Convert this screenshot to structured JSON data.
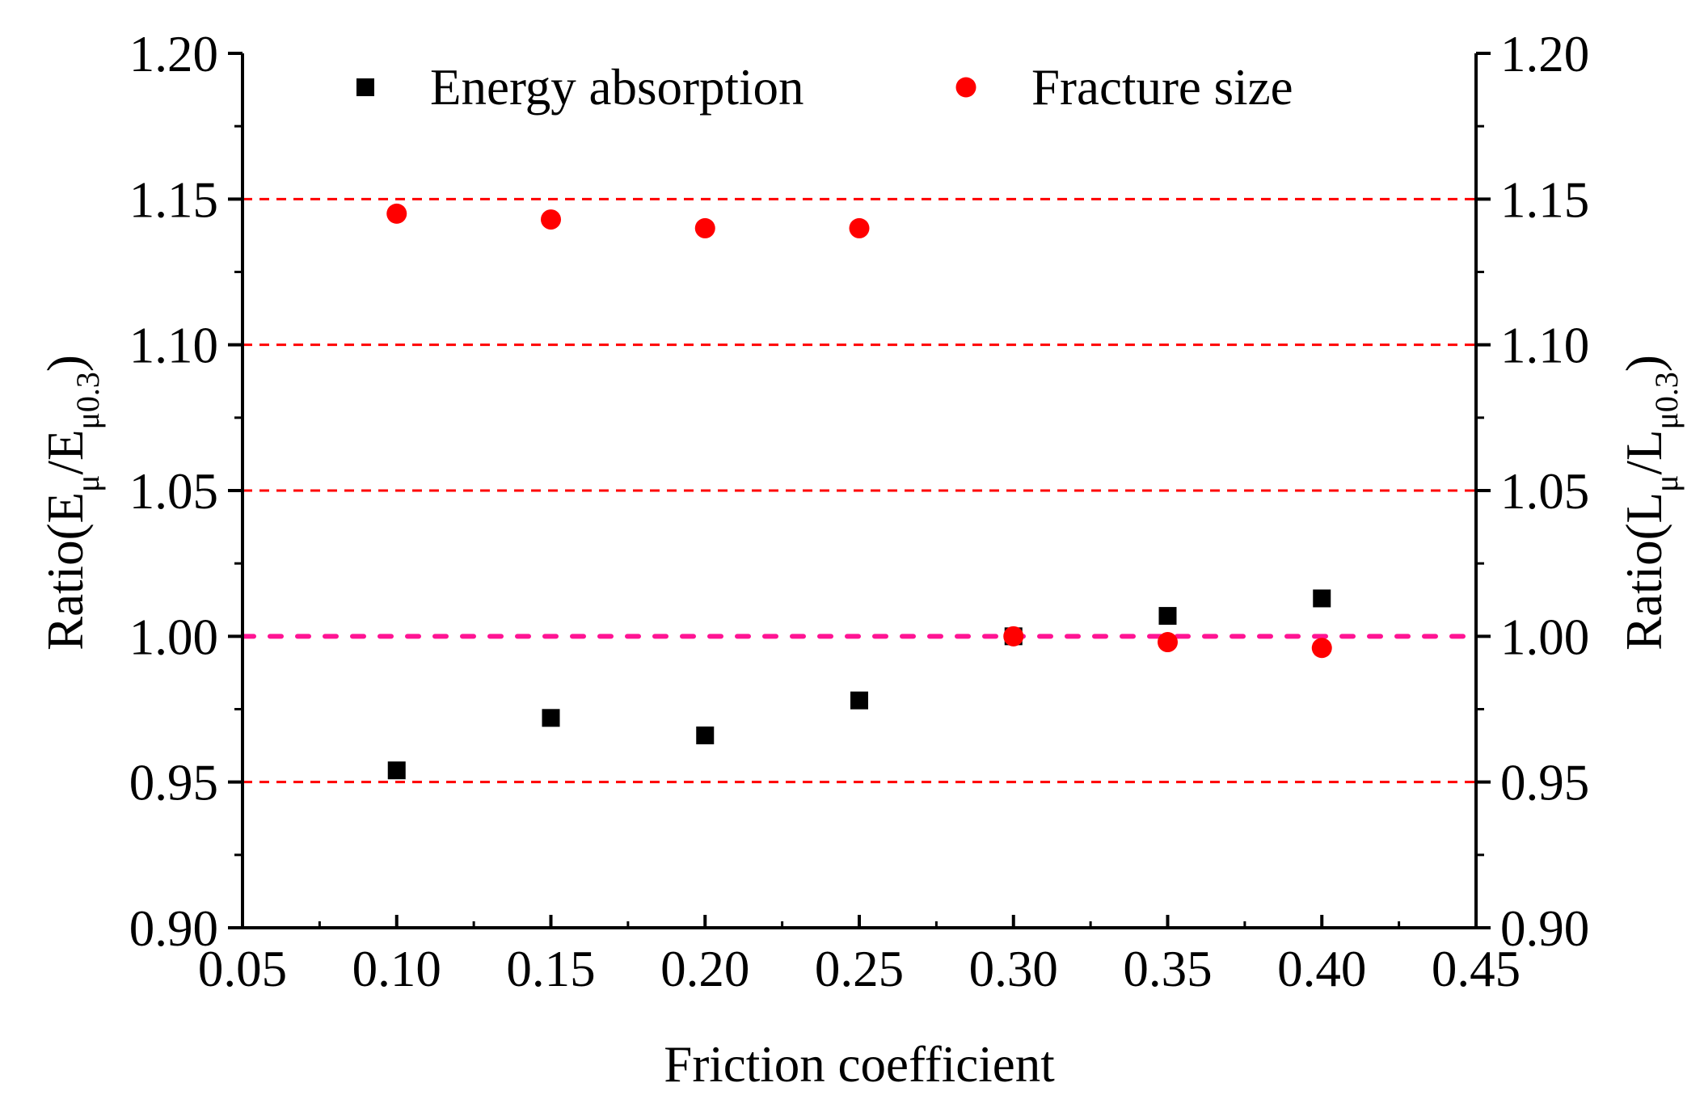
{
  "chart_data": {
    "type": "scatter",
    "xlabel": "Friction coefficient",
    "ylabel_left": {
      "prefix": "Ratio(E",
      "sub1": "μ",
      "mid": "/E",
      "sub2": "μ0.3",
      "suffix": ")"
    },
    "ylabel_right": {
      "prefix": "Ratio(L",
      "sub1": "μ",
      "mid": "/L",
      "sub2": "μ0.3",
      "suffix": ")"
    },
    "xlim": [
      0.05,
      0.45
    ],
    "ylim": [
      0.9,
      1.2
    ],
    "x_ticks": [
      "0.05",
      "0.10",
      "0.15",
      "0.20",
      "0.25",
      "0.30",
      "0.35",
      "0.40",
      "0.45"
    ],
    "y_ticks": [
      "0.90",
      "0.95",
      "1.00",
      "1.05",
      "1.10",
      "1.15",
      "1.20"
    ],
    "reference_lines": [
      0.95,
      1.05,
      1.1,
      1.15
    ],
    "baseline": 1.0,
    "legend_position": "top",
    "series": [
      {
        "name": "Energy absorption",
        "marker": "square",
        "color": "#000000",
        "x": [
          0.1,
          0.15,
          0.2,
          0.25,
          0.3,
          0.35,
          0.4
        ],
        "y": [
          0.954,
          0.972,
          0.966,
          0.978,
          1.0,
          1.007,
          1.013
        ]
      },
      {
        "name": "Fracture size",
        "marker": "circle",
        "color": "#ff0000",
        "x": [
          0.1,
          0.15,
          0.2,
          0.25,
          0.3,
          0.35,
          0.4
        ],
        "y": [
          1.145,
          1.143,
          1.14,
          1.14,
          1.0,
          0.998,
          0.996
        ]
      }
    ],
    "colors": {
      "reference": "#ff0000",
      "baseline": "#ff1493",
      "axis": "#000000"
    }
  }
}
